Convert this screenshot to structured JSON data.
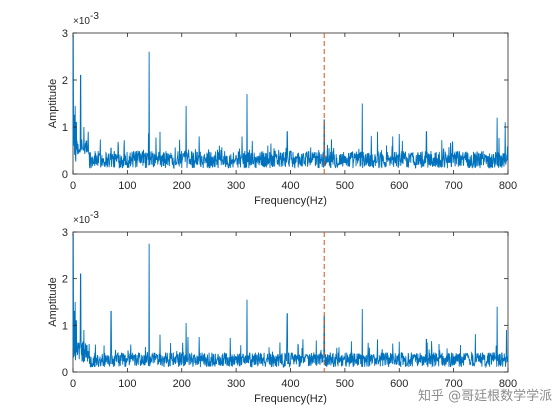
{
  "chart_data": [
    {
      "type": "line",
      "xlabel": "Frequency(Hz)",
      "ylabel": "Amptitude",
      "exponent_label": "×10",
      "exponent_power": "-3",
      "xlim": [
        0,
        800
      ],
      "ylim": [
        0,
        3
      ],
      "xticks": [
        "0",
        "100",
        "200",
        "300",
        "400",
        "500",
        "600",
        "700",
        "800"
      ],
      "yticks": [
        "0",
        "1",
        "2",
        "3"
      ],
      "line_color": "#0072BD",
      "marker_color": "#D95319",
      "marker_x": 462,
      "noise_floor": 0.35,
      "peaks": [
        {
          "x": 0.5,
          "y": 2.95
        },
        {
          "x": 2,
          "y": 1.25
        },
        {
          "x": 4,
          "y": 1.45
        },
        {
          "x": 6,
          "y": 1.1
        },
        {
          "x": 14,
          "y": 2.1
        },
        {
          "x": 20,
          "y": 1.0
        },
        {
          "x": 28,
          "y": 0.9
        },
        {
          "x": 70,
          "y": 0.55
        },
        {
          "x": 140,
          "y": 2.6
        },
        {
          "x": 160,
          "y": 0.9
        },
        {
          "x": 208,
          "y": 1.45
        },
        {
          "x": 232,
          "y": 0.8
        },
        {
          "x": 320,
          "y": 1.7
        },
        {
          "x": 394,
          "y": 0.9
        },
        {
          "x": 462,
          "y": 1.15
        },
        {
          "x": 532,
          "y": 1.5
        },
        {
          "x": 560,
          "y": 0.9
        },
        {
          "x": 600,
          "y": 0.85
        },
        {
          "x": 650,
          "y": 0.9
        },
        {
          "x": 780,
          "y": 1.2
        },
        {
          "x": 795,
          "y": 1.1
        }
      ]
    },
    {
      "type": "line",
      "xlabel": "Frequency(Hz)",
      "ylabel": "Amptitude",
      "exponent_label": "×10",
      "exponent_power": "-3",
      "xlim": [
        0,
        800
      ],
      "ylim": [
        0,
        3
      ],
      "xticks": [
        "0",
        "100",
        "200",
        "300",
        "400",
        "500",
        "600",
        "700",
        "800"
      ],
      "yticks": [
        "0",
        "1",
        "2",
        "3"
      ],
      "line_color": "#0072BD",
      "marker_color": "#D95319",
      "marker_x": 462,
      "noise_floor": 0.3,
      "peaks": [
        {
          "x": 0.5,
          "y": 2.95
        },
        {
          "x": 2,
          "y": 1.3
        },
        {
          "x": 4,
          "y": 1.5
        },
        {
          "x": 6,
          "y": 1.1
        },
        {
          "x": 14,
          "y": 2.1
        },
        {
          "x": 20,
          "y": 0.9
        },
        {
          "x": 70,
          "y": 1.3
        },
        {
          "x": 140,
          "y": 2.75
        },
        {
          "x": 160,
          "y": 0.8
        },
        {
          "x": 208,
          "y": 1.05
        },
        {
          "x": 232,
          "y": 0.75
        },
        {
          "x": 320,
          "y": 1.55
        },
        {
          "x": 394,
          "y": 1.25
        },
        {
          "x": 462,
          "y": 1.2
        },
        {
          "x": 532,
          "y": 1.35
        },
        {
          "x": 560,
          "y": 0.7
        },
        {
          "x": 600,
          "y": 0.65
        },
        {
          "x": 650,
          "y": 0.7
        },
        {
          "x": 780,
          "y": 1.4
        },
        {
          "x": 797,
          "y": 0.9
        }
      ]
    }
  ],
  "watermark": "知乎 @哥廷根数学学派"
}
